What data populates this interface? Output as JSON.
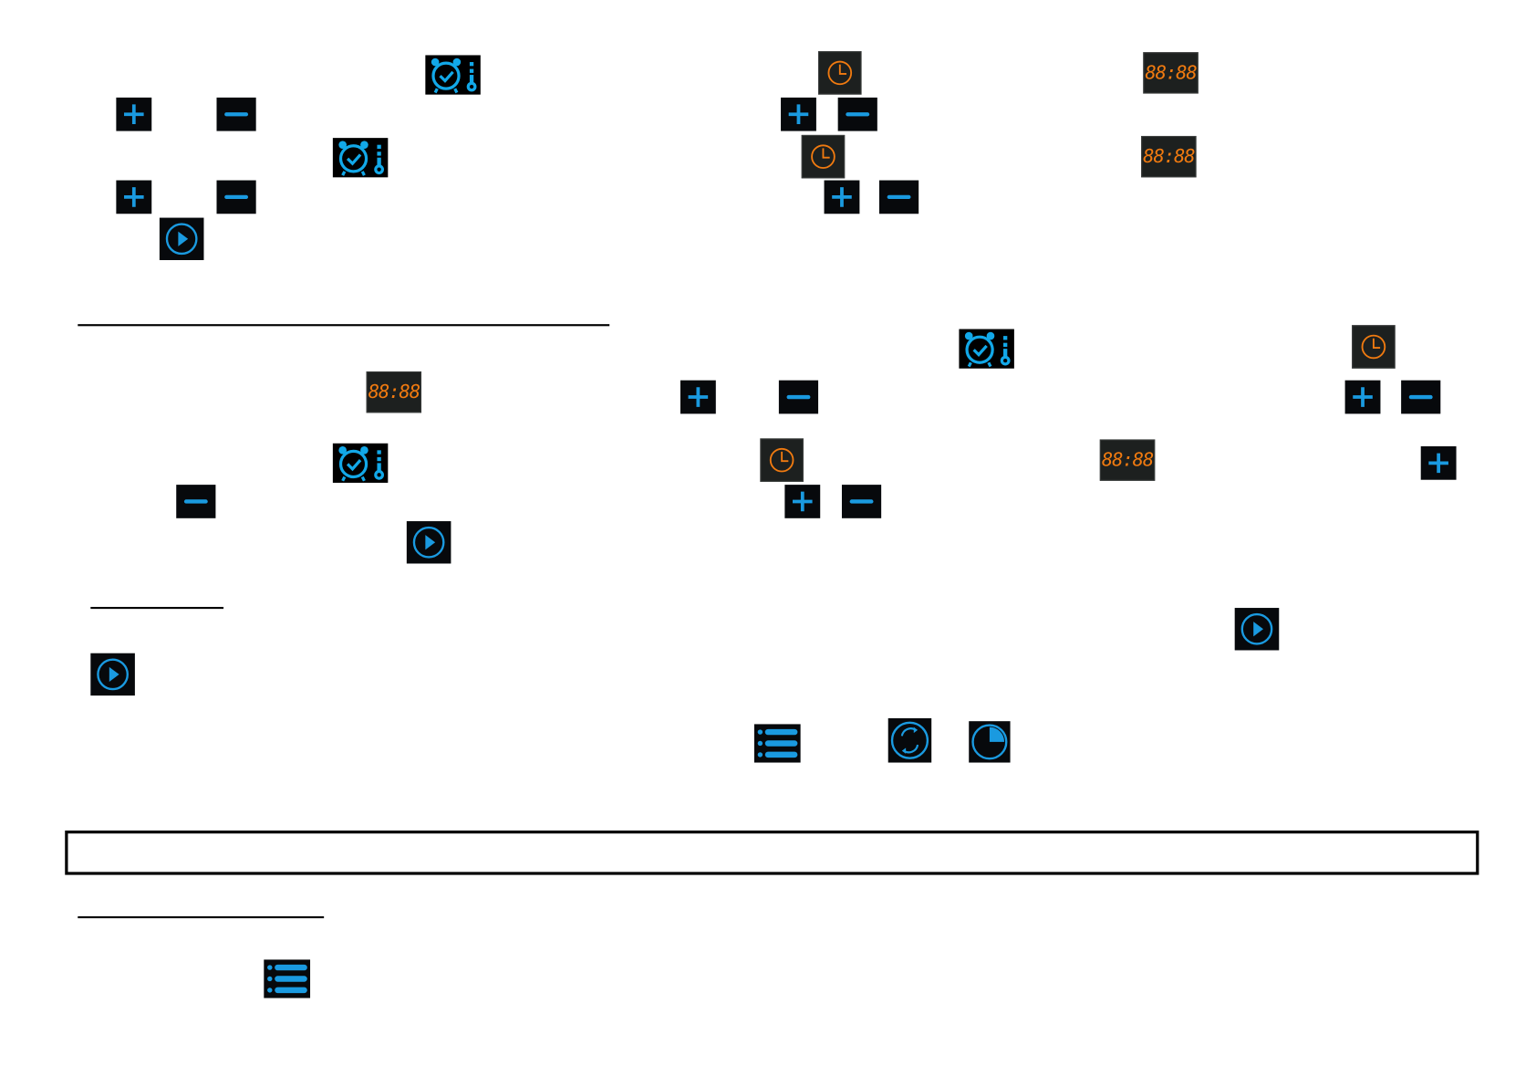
{
  "display": {
    "digits": "88:88"
  },
  "icons": {
    "plus": "plus-icon",
    "minus": "minus-icon",
    "alarm_temperature": "alarm-thermometer-icon",
    "clock": "clock-icon",
    "play": "play-icon",
    "list": "list-icon",
    "rotate": "rotate-icon",
    "timer": "timer-icon"
  },
  "colors": {
    "icon_blue": "#1a9ae0",
    "display_orange": "#f07a10",
    "button_bg": "#07090c"
  }
}
